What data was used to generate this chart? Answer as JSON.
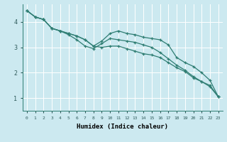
{
  "xlabel": "Humidex (Indice chaleur)",
  "ylabel": "",
  "bg_color": "#cce9f0",
  "grid_color": "#ffffff",
  "line_color": "#2e7d72",
  "xlim": [
    -0.5,
    23.5
  ],
  "ylim": [
    0.5,
    4.7
  ],
  "xticks": [
    0,
    1,
    2,
    3,
    4,
    5,
    6,
    7,
    8,
    9,
    10,
    11,
    12,
    13,
    14,
    15,
    16,
    17,
    18,
    19,
    20,
    21,
    22,
    23
  ],
  "yticks": [
    1,
    2,
    3,
    4
  ],
  "series": [
    [
      4.45,
      4.2,
      4.1,
      3.75,
      3.65,
      3.55,
      3.45,
      3.3,
      3.05,
      3.25,
      3.55,
      3.65,
      3.55,
      3.5,
      3.4,
      3.35,
      3.3,
      3.1,
      2.6,
      2.4,
      2.25,
      2.0,
      1.7,
      1.05
    ],
    [
      4.45,
      4.2,
      4.1,
      3.75,
      3.65,
      3.5,
      3.3,
      3.05,
      2.95,
      3.15,
      3.35,
      3.3,
      3.25,
      3.2,
      3.1,
      3.0,
      2.8,
      2.55,
      2.3,
      2.1,
      1.85,
      1.65,
      1.45,
      1.05
    ],
    [
      4.45,
      4.2,
      4.1,
      3.75,
      3.65,
      3.55,
      3.45,
      3.3,
      3.05,
      3.0,
      3.05,
      3.05,
      2.95,
      2.85,
      2.75,
      2.7,
      2.6,
      2.4,
      2.2,
      2.05,
      1.8,
      1.65,
      1.5,
      1.05
    ]
  ]
}
